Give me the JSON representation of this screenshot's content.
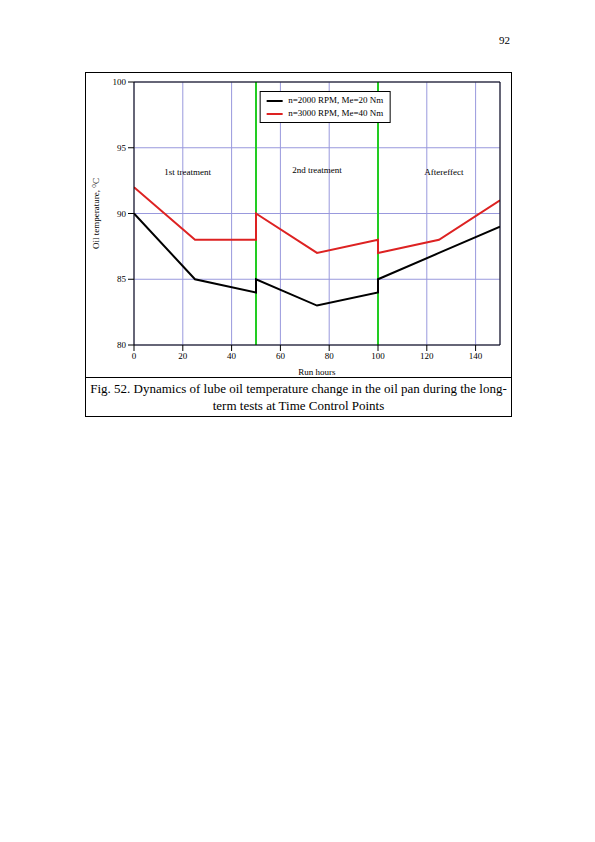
{
  "page_number": "92",
  "caption": "Fig. 52. Dynamics of lube oil temperature change in the oil pan during the long-term tests at Time Control Points",
  "chart_data": {
    "type": "line",
    "x_label": "Run hours",
    "y_label": "Oil temperature, ⁰C",
    "x": [
      0,
      25,
      50,
      50,
      75,
      100,
      100,
      125,
      150
    ],
    "series": [
      {
        "name": "n=2000 RPM, Me=20 Nm",
        "color": "#000000",
        "marker": "none",
        "line_style": "solid",
        "values": [
          90,
          85,
          84,
          85,
          83,
          84,
          85,
          87,
          89
        ]
      },
      {
        "name": "n=3000 RPM, Me=40 Nm",
        "color": "#dd2222",
        "marker": "none",
        "line_style": "solid",
        "values": [
          92,
          88,
          88,
          90,
          87,
          88,
          87,
          88,
          91
        ]
      }
    ],
    "xlim": [
      0,
      150
    ],
    "xticks": [
      0,
      20,
      40,
      60,
      80,
      100,
      120,
      140
    ],
    "ylim": [
      80,
      100
    ],
    "yticks": [
      80,
      85,
      90,
      95,
      100
    ],
    "grid": true,
    "legend": "top",
    "vertical_lines": [
      {
        "x": 50,
        "color": "#22cc22"
      },
      {
        "x": 100,
        "color": "#22cc22"
      }
    ],
    "annotations": [
      {
        "text": "1st treatment",
        "x": 22,
        "y": 93.2
      },
      {
        "text": "2nd treatment",
        "x": 75,
        "y": 93.3
      },
      {
        "text": "Aftereffect",
        "x": 127,
        "y": 93.2
      }
    ]
  }
}
